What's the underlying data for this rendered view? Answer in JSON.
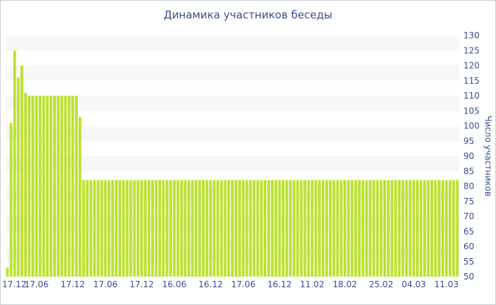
{
  "chart_data": {
    "type": "bar",
    "title": "Динамика участников беседы",
    "xlabel": "",
    "ylabel": "Число участников",
    "ylim": [
      50,
      130
    ],
    "y_ticks": [
      50,
      55,
      60,
      65,
      70,
      75,
      80,
      85,
      90,
      95,
      100,
      105,
      110,
      115,
      120,
      125,
      130
    ],
    "y_axis_side": "right",
    "grid": "horizontal-bands",
    "legend": "none",
    "bar_color": "#bde234",
    "band_color": "#f7f7f7",
    "x_tick_labels": [
      "17.12",
      "17.06",
      "17.12",
      "17.06",
      "17.12",
      "16.06",
      "16.12",
      "17.06",
      "16.12",
      "11.02",
      "18.02",
      "25.02",
      "04.03",
      "11.03"
    ],
    "x_tick_positions": [
      0,
      8,
      18,
      27,
      37,
      46,
      56,
      65,
      75,
      84,
      93,
      103,
      112,
      121
    ],
    "values": [
      53,
      101,
      125,
      116,
      120,
      111,
      110,
      110,
      110,
      110,
      110,
      110,
      110,
      110,
      110,
      110,
      110,
      110,
      110,
      110,
      103,
      82,
      82,
      82,
      82,
      82,
      82,
      82,
      82,
      82,
      82,
      82,
      82,
      82,
      82,
      82,
      82,
      82,
      82,
      82,
      82,
      82,
      82,
      82,
      82,
      82,
      82,
      82,
      82,
      82,
      82,
      82,
      82,
      82,
      82,
      82,
      82,
      82,
      82,
      82,
      82,
      82,
      82,
      82,
      82,
      82,
      82,
      82,
      82,
      82,
      82,
      82,
      82,
      82,
      82,
      82,
      82,
      82,
      82,
      82,
      82,
      82,
      82,
      82,
      82,
      82,
      82,
      82,
      82,
      82,
      82,
      82,
      82,
      82,
      82,
      82,
      82,
      82,
      82,
      82,
      82,
      82,
      82,
      82,
      82,
      82,
      82,
      82,
      82,
      82,
      82,
      82,
      82,
      82,
      82,
      82,
      82,
      82,
      82,
      82,
      82,
      82,
      82,
      82,
      82
    ]
  }
}
